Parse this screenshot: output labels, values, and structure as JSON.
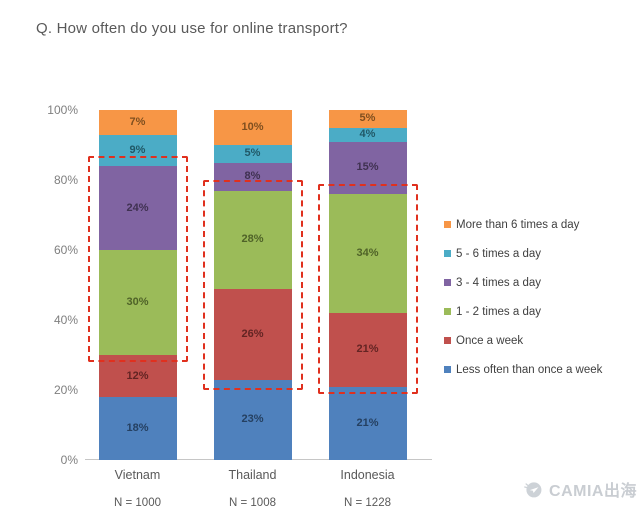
{
  "title": "Q. How often do you use for online transport?",
  "watermark": {
    "text": "CAMIA出海",
    "logo": "paper-plane-circle-icon",
    "color": "#c9cdd2"
  },
  "colors": {
    "highlight_box": "#e0301e",
    "axis": "#c6c6c6",
    "title_text": "#595959"
  },
  "chart_data": {
    "type": "bar",
    "subtype": "stacked-100-percent",
    "title": "Q. How often do you use for online transport?",
    "categories": [
      "Vietnam",
      "Thailand",
      "Indonesia"
    ],
    "sample_labels": [
      "N = 1000",
      "N = 1008",
      "N = 1228"
    ],
    "y_ticks": [
      "0%",
      "20%",
      "40%",
      "60%",
      "80%",
      "100%"
    ],
    "ylim": [
      0,
      100
    ],
    "grid": false,
    "legend_position": "right",
    "series": [
      {
        "name": "Less often than once a week",
        "color": "#4F81BD",
        "label_color": "#254061",
        "values": [
          18,
          23,
          21
        ]
      },
      {
        "name": "Once a week",
        "color": "#C0504D",
        "label_color": "#632423",
        "values": [
          12,
          26,
          21
        ]
      },
      {
        "name": "1 - 2 times a day",
        "color": "#9BBB59",
        "label_color": "#4F6228",
        "values": [
          30,
          28,
          34
        ]
      },
      {
        "name": "3 - 4 times a day",
        "color": "#8064A2",
        "label_color": "#3F3151",
        "values": [
          24,
          8,
          15
        ]
      },
      {
        "name": "5 - 6 times a day",
        "color": "#4BACC6",
        "label_color": "#215968",
        "values": [
          9,
          5,
          4
        ]
      },
      {
        "name": "More than 6 times a day",
        "color": "#F79646",
        "label_color": "#7F4F1F",
        "values": [
          7,
          10,
          5
        ]
      }
    ],
    "legend_order_top_to_bottom": [
      "More than 6 times a day",
      "5 - 6 times a day",
      "3 - 4 times a day",
      "1 - 2 times a day",
      "Once a week",
      "Less often than once a week"
    ],
    "highlight_boxes": [
      {
        "category": "Vietnam",
        "from_pct": 28,
        "to_pct": 87,
        "style": "red-dashed"
      },
      {
        "category": "Thailand",
        "from_pct": 20,
        "to_pct": 80,
        "style": "red-dashed"
      },
      {
        "category": "Indonesia",
        "from_pct": 19,
        "to_pct": 79,
        "style": "red-dashed"
      }
    ]
  }
}
